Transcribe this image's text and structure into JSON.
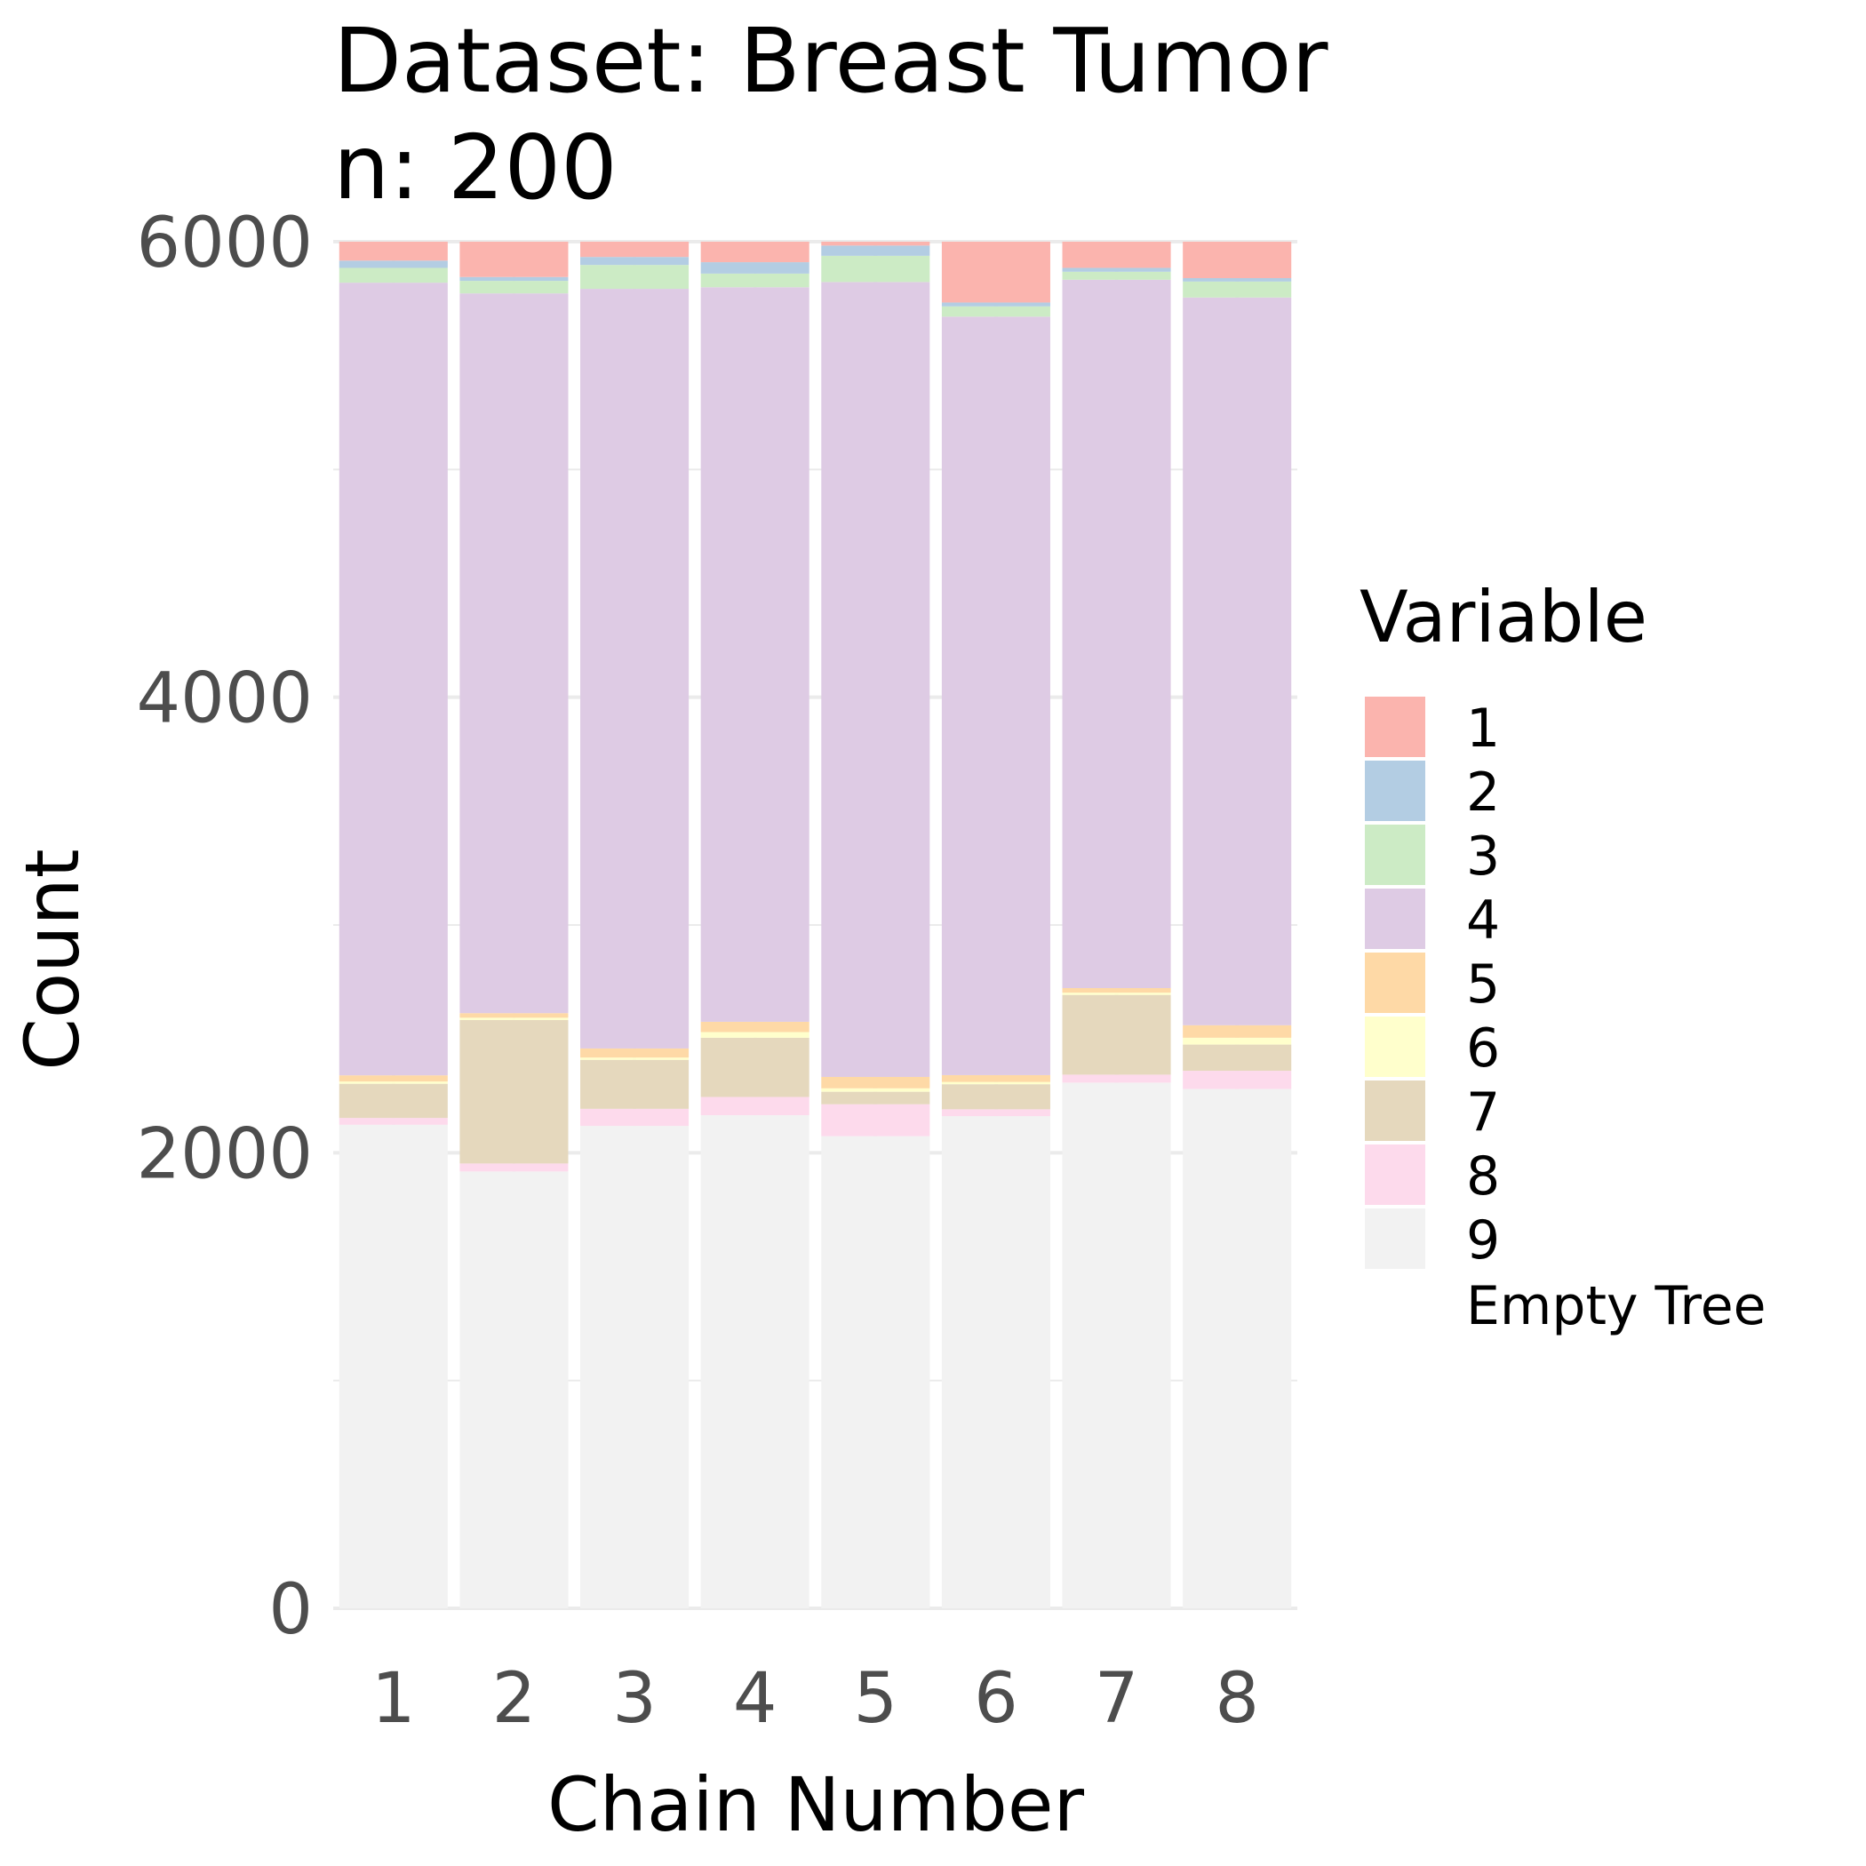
{
  "chart_data": {
    "type": "bar",
    "stacked": true,
    "title": "Dataset: Breast Tumor",
    "subtitle": "n: 200",
    "xlabel": "Chain Number",
    "ylabel": "Count",
    "categories": [
      "1",
      "2",
      "3",
      "4",
      "5",
      "6",
      "7",
      "8"
    ],
    "ylim": [
      0,
      6000
    ],
    "yticks": [
      "0",
      "2000",
      "4000",
      "6000"
    ],
    "grid": true,
    "legend": {
      "title": "Variable",
      "position": "right"
    },
    "series": [
      {
        "name": "1",
        "color": "#FBB4AE",
        "values": [
          83,
          155,
          67,
          90,
          17,
          267,
          115,
          160
        ]
      },
      {
        "name": "2",
        "color": "#B3CDE3",
        "values": [
          32,
          17,
          35,
          50,
          45,
          17,
          17,
          15
        ]
      },
      {
        "name": "3",
        "color": "#CCEBC5",
        "values": [
          65,
          55,
          105,
          60,
          115,
          45,
          35,
          70
        ]
      },
      {
        "name": "4",
        "color": "#DECBE4",
        "values": [
          3480,
          3160,
          3335,
          3225,
          3490,
          3330,
          3110,
          3195
        ]
      },
      {
        "name": "5",
        "color": "#FED9A6",
        "values": [
          27,
          20,
          40,
          45,
          50,
          30,
          20,
          55
        ]
      },
      {
        "name": "6",
        "color": "#FFFFCC",
        "values": [
          10,
          10,
          10,
          25,
          15,
          10,
          10,
          30
        ]
      },
      {
        "name": "7",
        "color": "#E5D8BD",
        "values": [
          150,
          630,
          215,
          260,
          55,
          110,
          350,
          115
        ]
      },
      {
        "name": "8",
        "color": "#FDDAEC",
        "values": [
          30,
          35,
          75,
          80,
          140,
          30,
          35,
          80
        ]
      },
      {
        "name": "9",
        "color": "#F2F2F2",
        "values": [
          2123,
          1918,
          2118,
          2165,
          2073,
          2161,
          2308,
          2280
        ]
      }
    ],
    "extra_legend_label": "Empty Tree"
  }
}
